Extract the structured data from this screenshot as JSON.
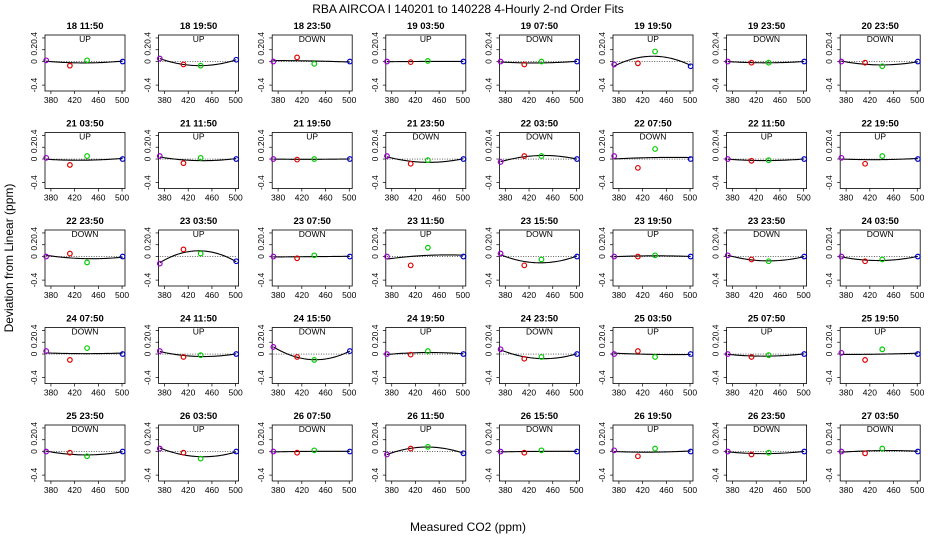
{
  "chart_data": {
    "type": "scatter",
    "title": "RBA   AIRCOA I   140201 to 140228   4-Hourly 2-nd Order Fits",
    "xlabel": "Measured CO2 (ppm)",
    "ylabel": "Deviation from Linear (ppm)",
    "xlim": [
      370,
      505
    ],
    "ylim": [
      -0.5,
      0.45
    ],
    "xticks": [
      380,
      420,
      460,
      500
    ],
    "yticks": [
      -0.4,
      0,
      0.2,
      0.4
    ],
    "ytick_labels": [
      "-0.4",
      "0",
      "0.2",
      "0.4"
    ],
    "point_x": [
      372,
      412,
      441,
      501
    ],
    "point_colors": [
      "#9900cc",
      "#e00000",
      "#00cc00",
      "#0000cc"
    ],
    "panels": [
      {
        "label": "18 11:50",
        "dir": "UP",
        "y": [
          0.02,
          -0.07,
          0.02,
          0.0
        ]
      },
      {
        "label": "18 19:50",
        "dir": "UP",
        "y": [
          0.05,
          -0.05,
          -0.07,
          0.03
        ]
      },
      {
        "label": "18 23:50",
        "dir": "DOWN",
        "y": [
          0.0,
          0.07,
          -0.04,
          0.0
        ]
      },
      {
        "label": "19 03:50",
        "dir": "UP",
        "y": [
          0.0,
          -0.01,
          0.01,
          0.0
        ]
      },
      {
        "label": "19 07:50",
        "dir": "DOWN",
        "y": [
          0.0,
          -0.05,
          0.0,
          0.0
        ]
      },
      {
        "label": "19 19:50",
        "dir": "UP",
        "y": [
          -0.05,
          -0.03,
          0.17,
          -0.08
        ]
      },
      {
        "label": "19 23:50",
        "dir": "DOWN",
        "y": [
          0.0,
          -0.02,
          -0.02,
          0.0
        ]
      },
      {
        "label": "20 23:50",
        "dir": "DOWN",
        "y": [
          0.0,
          -0.02,
          -0.08,
          0.0
        ]
      },
      {
        "label": "21 03:50",
        "dir": "UP",
        "y": [
          0.02,
          -0.1,
          0.05,
          0.0
        ]
      },
      {
        "label": "21 11:50",
        "dir": "UP",
        "y": [
          0.05,
          -0.07,
          0.02,
          0.0
        ]
      },
      {
        "label": "21 19:50",
        "dir": "UP",
        "y": [
          0.0,
          -0.01,
          0.0,
          0.0
        ]
      },
      {
        "label": "21 23:50",
        "dir": "DOWN",
        "y": [
          0.05,
          -0.08,
          -0.02,
          0.0
        ]
      },
      {
        "label": "22 03:50",
        "dir": "DOWN",
        "y": [
          -0.05,
          0.05,
          0.05,
          0.0
        ]
      },
      {
        "label": "22 07:50",
        "dir": "DOWN",
        "y": [
          0.05,
          -0.15,
          0.17,
          0.0
        ]
      },
      {
        "label": "22 11:50",
        "dir": "UP",
        "y": [
          0.0,
          -0.03,
          -0.02,
          0.0
        ]
      },
      {
        "label": "22 19:50",
        "dir": "UP",
        "y": [
          0.02,
          -0.08,
          0.05,
          0.0
        ]
      },
      {
        "label": "22 23:50",
        "dir": "DOWN",
        "y": [
          0.0,
          0.05,
          -0.1,
          0.0
        ]
      },
      {
        "label": "23 03:50",
        "dir": "UP",
        "y": [
          -0.12,
          0.12,
          0.05,
          -0.08
        ]
      },
      {
        "label": "23 07:50",
        "dir": "DOWN",
        "y": [
          0.0,
          -0.03,
          0.02,
          0.0
        ]
      },
      {
        "label": "23 11:50",
        "dir": "UP",
        "y": [
          0.0,
          -0.15,
          0.15,
          0.0
        ]
      },
      {
        "label": "23 15:50",
        "dir": "DOWN",
        "y": [
          0.05,
          -0.15,
          -0.05,
          0.0
        ]
      },
      {
        "label": "23 19:50",
        "dir": "UP",
        "y": [
          0.0,
          0.0,
          0.02,
          0.0
        ]
      },
      {
        "label": "23 23:50",
        "dir": "DOWN",
        "y": [
          0.02,
          -0.05,
          -0.08,
          0.0
        ]
      },
      {
        "label": "24 03:50",
        "dir": "DOWN",
        "y": [
          0.0,
          -0.08,
          -0.05,
          0.0
        ]
      },
      {
        "label": "24 07:50",
        "dir": "DOWN",
        "y": [
          0.05,
          -0.1,
          0.1,
          0.0
        ]
      },
      {
        "label": "24 11:50",
        "dir": "UP",
        "y": [
          0.05,
          -0.05,
          -0.02,
          0.0
        ]
      },
      {
        "label": "24 15:50",
        "dir": "DOWN",
        "y": [
          0.12,
          -0.05,
          -0.1,
          0.05
        ]
      },
      {
        "label": "24 19:50",
        "dir": "UP",
        "y": [
          0.0,
          -0.01,
          0.05,
          0.0
        ]
      },
      {
        "label": "24 23:50",
        "dir": "DOWN",
        "y": [
          0.08,
          -0.08,
          -0.05,
          0.0
        ]
      },
      {
        "label": "25 03:50",
        "dir": "UP",
        "y": [
          0.0,
          0.05,
          -0.05,
          0.0
        ]
      },
      {
        "label": "25 07:50",
        "dir": "UP",
        "y": [
          0.0,
          -0.05,
          -0.02,
          0.0
        ]
      },
      {
        "label": "25 19:50",
        "dir": "UP",
        "y": [
          0.02,
          -0.1,
          0.08,
          0.0
        ]
      },
      {
        "label": "25 23:50",
        "dir": "DOWN",
        "y": [
          0.0,
          -0.02,
          -0.08,
          0.0
        ]
      },
      {
        "label": "26 03:50",
        "dir": "UP",
        "y": [
          0.05,
          -0.02,
          -0.12,
          0.0
        ]
      },
      {
        "label": "26 07:50",
        "dir": "DOWN",
        "y": [
          0.0,
          -0.02,
          0.02,
          0.0
        ]
      },
      {
        "label": "26 11:50",
        "dir": "UP",
        "y": [
          -0.05,
          0.05,
          0.08,
          -0.03
        ]
      },
      {
        "label": "26 15:50",
        "dir": "DOWN",
        "y": [
          0.0,
          -0.02,
          0.02,
          0.0
        ]
      },
      {
        "label": "26 19:50",
        "dir": "UP",
        "y": [
          0.02,
          -0.08,
          0.05,
          0.0
        ]
      },
      {
        "label": "26 23:50",
        "dir": "DOWN",
        "y": [
          0.0,
          -0.05,
          -0.02,
          0.0
        ]
      },
      {
        "label": "27 03:50",
        "dir": "DOWN",
        "y": [
          0.0,
          -0.03,
          0.05,
          0.0
        ]
      }
    ]
  }
}
